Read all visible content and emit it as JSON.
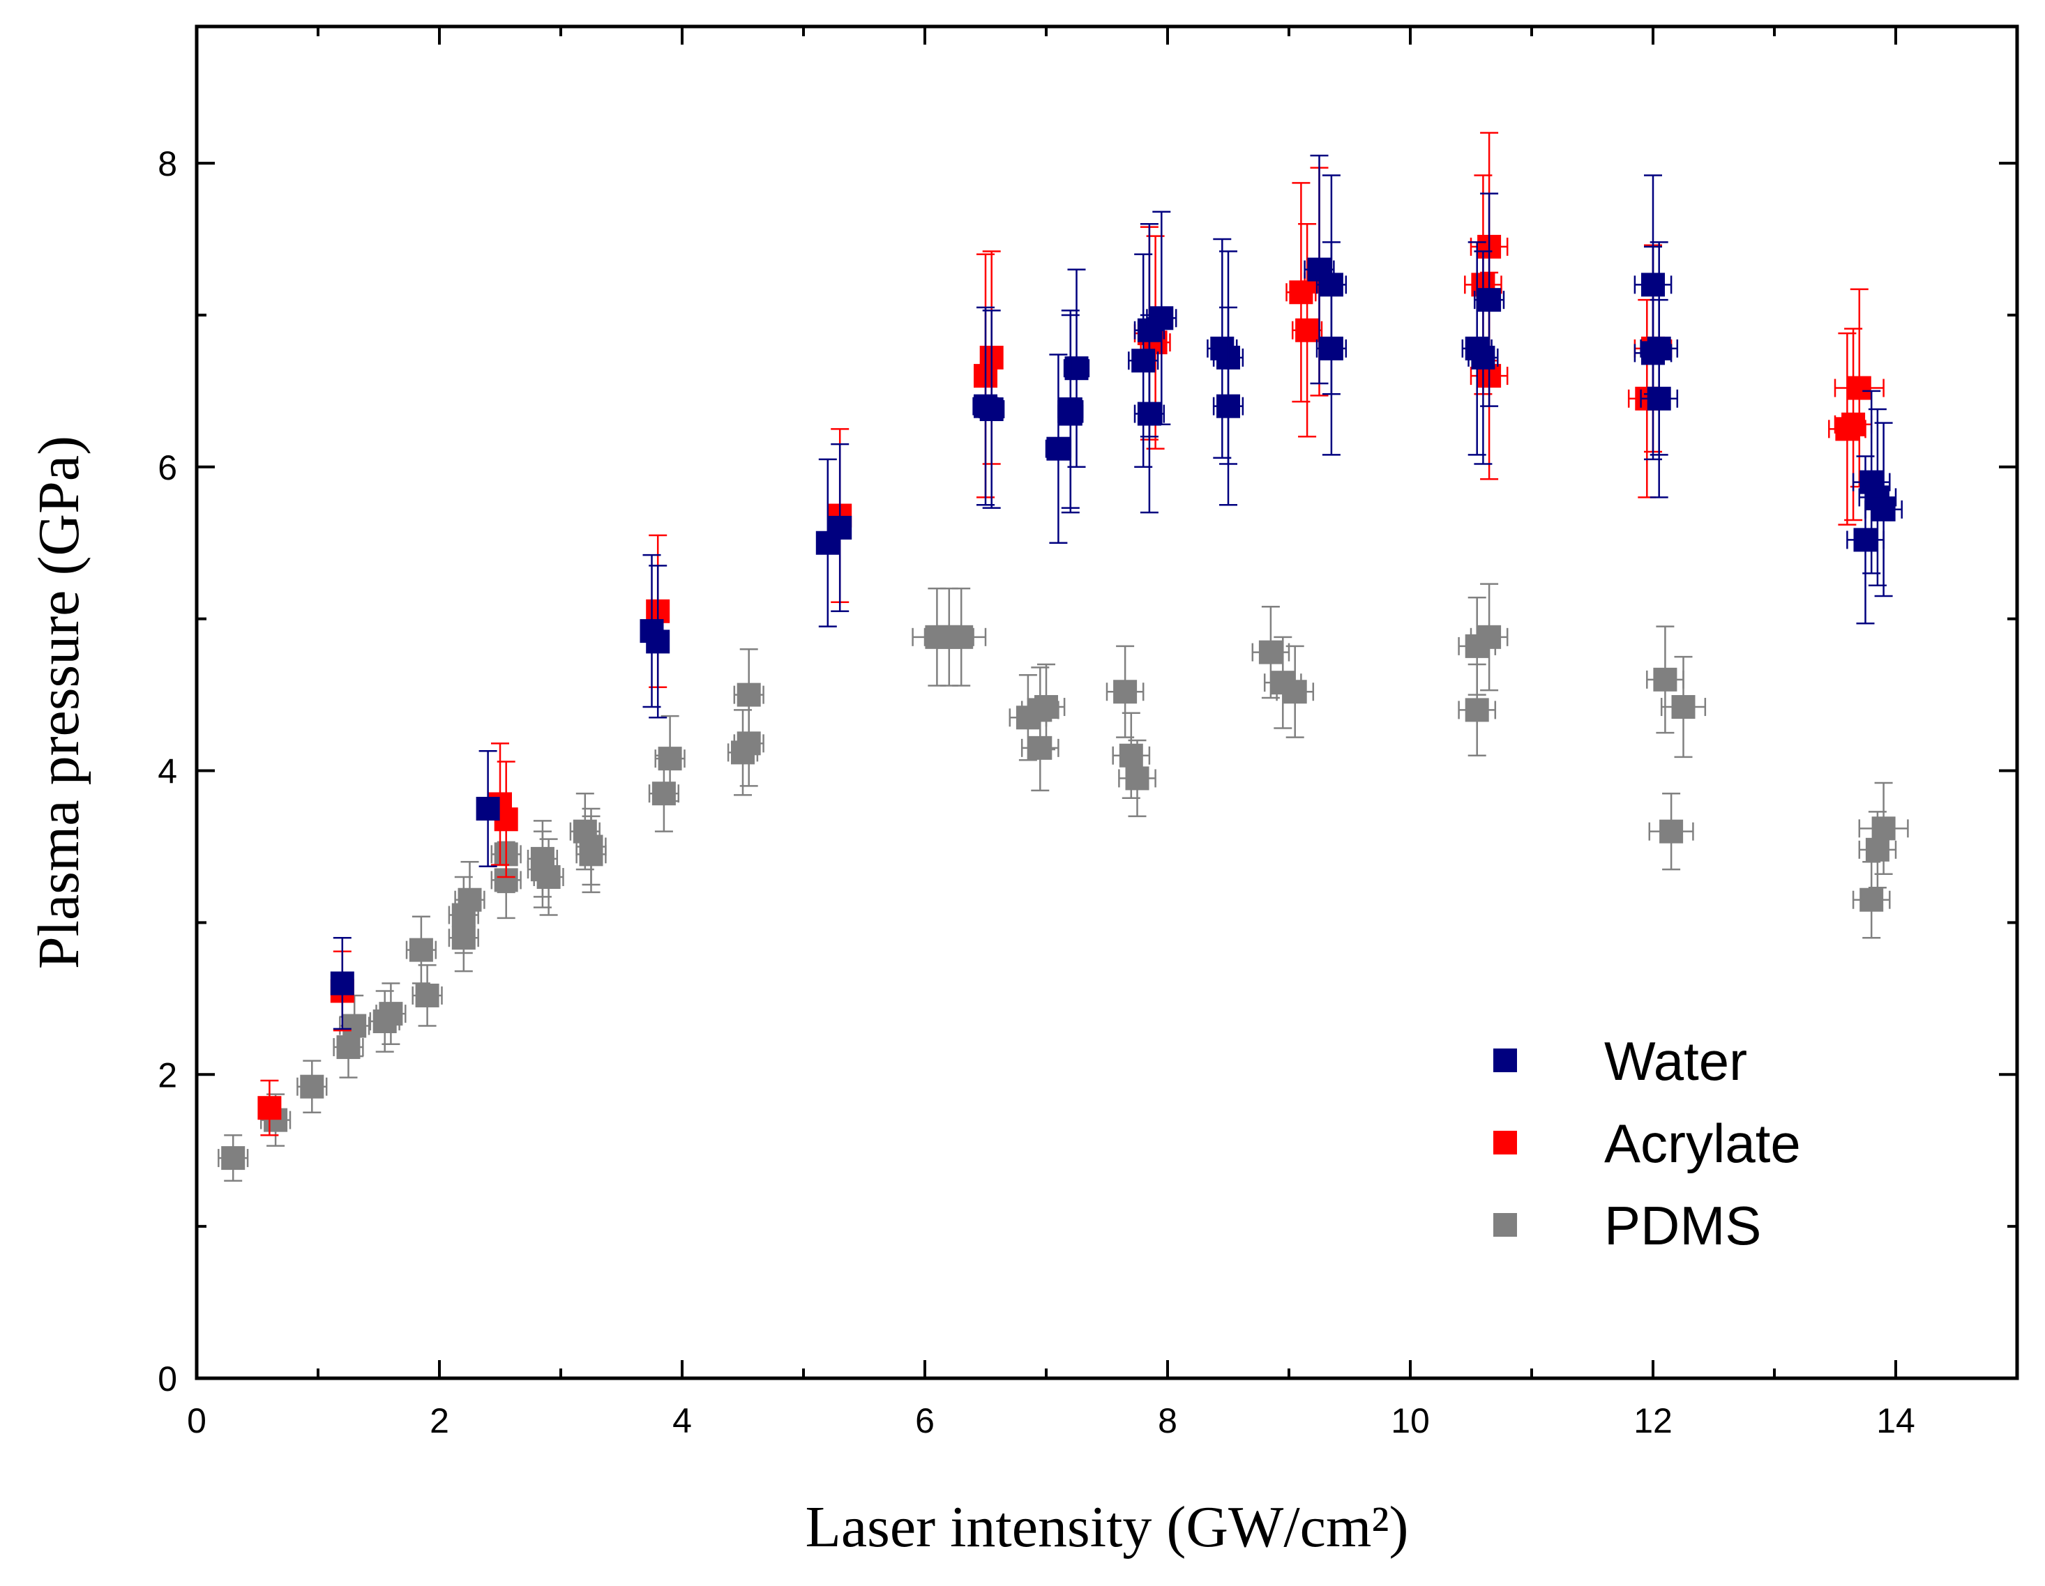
{
  "chart_data": {
    "type": "scatter",
    "title": "",
    "xlabel": "Laser intensity (GW/cm²)",
    "ylabel": "Plasma pressure (GPa)",
    "xlim": [
      0,
      15
    ],
    "ylim": [
      0,
      8.9
    ],
    "xticks": [
      "0",
      "2",
      "4",
      "6",
      "8",
      "10",
      "12",
      "14"
    ],
    "yticks": [
      "0",
      "2",
      "4",
      "6",
      "8"
    ],
    "grid": false,
    "legend_position": "bottom-right",
    "error_bars": true,
    "series": [
      {
        "name": "Water",
        "color": "#00007f",
        "points": [
          [
            1.2,
            2.6,
            0.0,
            0.3
          ],
          [
            2.4,
            3.75,
            0.0,
            0.38
          ],
          [
            3.75,
            4.92,
            0.0,
            0.5
          ],
          [
            3.8,
            4.85,
            0.0,
            0.5
          ],
          [
            5.2,
            5.5,
            0.0,
            0.55
          ],
          [
            5.3,
            5.6,
            0.0,
            0.55
          ],
          [
            6.5,
            6.4,
            0.1,
            0.65
          ],
          [
            6.55,
            6.38,
            0.1,
            0.65
          ],
          [
            7.1,
            6.12,
            0.1,
            0.62
          ],
          [
            7.2,
            6.38,
            0.1,
            0.65
          ],
          [
            7.25,
            6.65,
            0.1,
            0.65
          ],
          [
            7.2,
            6.35,
            0.1,
            0.65
          ],
          [
            7.8,
            6.7,
            0.12,
            0.7
          ],
          [
            7.85,
            6.9,
            0.12,
            0.7
          ],
          [
            7.95,
            6.98,
            0.12,
            0.7
          ],
          [
            7.85,
            6.35,
            0.12,
            0.65
          ],
          [
            8.45,
            6.78,
            0.12,
            0.72
          ],
          [
            8.5,
            6.72,
            0.12,
            0.7
          ],
          [
            8.5,
            6.4,
            0.12,
            0.65
          ],
          [
            9.25,
            7.3,
            0.12,
            0.75
          ],
          [
            9.35,
            7.2,
            0.12,
            0.72
          ],
          [
            9.35,
            6.78,
            0.12,
            0.7
          ],
          [
            10.55,
            6.78,
            0.12,
            0.7
          ],
          [
            10.6,
            6.72,
            0.12,
            0.7
          ],
          [
            10.65,
            7.1,
            0.12,
            0.7
          ],
          [
            12.0,
            7.2,
            0.15,
            0.72
          ],
          [
            12.0,
            6.75,
            0.15,
            0.7
          ],
          [
            12.05,
            6.78,
            0.15,
            0.7
          ],
          [
            12.05,
            6.45,
            0.15,
            0.65
          ],
          [
            13.75,
            5.52,
            0.15,
            0.55
          ],
          [
            13.8,
            5.9,
            0.15,
            0.6
          ],
          [
            13.85,
            5.8,
            0.15,
            0.58
          ],
          [
            13.9,
            5.72,
            0.15,
            0.57
          ]
        ]
      },
      {
        "name": "Acrylate",
        "color": "#ff0000",
        "points": [
          [
            0.6,
            1.78,
            0.0,
            0.18
          ],
          [
            1.2,
            2.55,
            0.0,
            0.26
          ],
          [
            2.5,
            3.78,
            0.0,
            0.4
          ],
          [
            2.55,
            3.68,
            0.0,
            0.38
          ],
          [
            3.8,
            5.05,
            0.0,
            0.5
          ],
          [
            5.3,
            5.68,
            0.0,
            0.57
          ],
          [
            6.5,
            6.6,
            0.0,
            0.8
          ],
          [
            6.55,
            6.72,
            0.0,
            0.7
          ],
          [
            7.85,
            6.88,
            0.12,
            0.7
          ],
          [
            7.9,
            6.82,
            0.12,
            0.7
          ],
          [
            9.1,
            7.15,
            0.12,
            0.72
          ],
          [
            9.15,
            6.9,
            0.12,
            0.7
          ],
          [
            9.25,
            7.22,
            0.12,
            0.75
          ],
          [
            10.6,
            7.2,
            0.15,
            0.72
          ],
          [
            10.65,
            7.45,
            0.15,
            0.75
          ],
          [
            10.65,
            6.6,
            0.15,
            0.68
          ],
          [
            11.95,
            6.45,
            0.15,
            0.65
          ],
          [
            12.0,
            6.78,
            0.15,
            0.68
          ],
          [
            13.6,
            6.25,
            0.15,
            0.63
          ],
          [
            13.65,
            6.28,
            0.15,
            0.63
          ],
          [
            13.7,
            6.52,
            0.2,
            0.65
          ]
        ]
      },
      {
        "name": "PDMS",
        "color": "#808080",
        "points": [
          [
            0.3,
            1.45,
            0.12,
            0.15
          ],
          [
            0.65,
            1.7,
            0.12,
            0.17
          ],
          [
            0.95,
            1.92,
            0.12,
            0.17
          ],
          [
            1.25,
            2.18,
            0.12,
            0.2
          ],
          [
            1.3,
            2.32,
            0.12,
            0.2
          ],
          [
            1.55,
            2.35,
            0.12,
            0.2
          ],
          [
            1.6,
            2.4,
            0.12,
            0.2
          ],
          [
            1.85,
            2.82,
            0.12,
            0.22
          ],
          [
            1.9,
            2.52,
            0.12,
            0.2
          ],
          [
            2.2,
            2.9,
            0.12,
            0.22
          ],
          [
            2.2,
            3.05,
            0.12,
            0.25
          ],
          [
            2.25,
            3.15,
            0.12,
            0.25
          ],
          [
            2.55,
            3.28,
            0.12,
            0.25
          ],
          [
            2.55,
            3.45,
            0.12,
            0.25
          ],
          [
            2.85,
            3.42,
            0.12,
            0.25
          ],
          [
            2.85,
            3.35,
            0.12,
            0.25
          ],
          [
            2.9,
            3.3,
            0.12,
            0.25
          ],
          [
            3.2,
            3.6,
            0.12,
            0.25
          ],
          [
            3.25,
            3.5,
            0.12,
            0.25
          ],
          [
            3.25,
            3.45,
            0.12,
            0.25
          ],
          [
            3.85,
            3.85,
            0.12,
            0.25
          ],
          [
            3.9,
            4.08,
            0.12,
            0.28
          ],
          [
            4.5,
            4.12,
            0.12,
            0.28
          ],
          [
            4.55,
            4.18,
            0.12,
            0.28
          ],
          [
            4.55,
            4.5,
            0.12,
            0.3
          ],
          [
            6.1,
            4.88,
            0.2,
            0.32
          ],
          [
            6.2,
            4.88,
            0.2,
            0.32
          ],
          [
            6.3,
            4.88,
            0.2,
            0.32
          ],
          [
            6.85,
            4.35,
            0.15,
            0.28
          ],
          [
            6.95,
            4.4,
            0.15,
            0.28
          ],
          [
            7.0,
            4.42,
            0.15,
            0.28
          ],
          [
            6.95,
            4.15,
            0.15,
            0.28
          ],
          [
            7.65,
            4.52,
            0.15,
            0.3
          ],
          [
            7.7,
            4.1,
            0.15,
            0.28
          ],
          [
            7.75,
            3.95,
            0.15,
            0.25
          ],
          [
            8.85,
            4.78,
            0.15,
            0.3
          ],
          [
            8.95,
            4.58,
            0.15,
            0.3
          ],
          [
            9.05,
            4.52,
            0.15,
            0.3
          ],
          [
            10.55,
            4.82,
            0.15,
            0.32
          ],
          [
            10.65,
            4.88,
            0.15,
            0.35
          ],
          [
            10.55,
            4.4,
            0.15,
            0.3
          ],
          [
            12.1,
            4.6,
            0.15,
            0.35
          ],
          [
            12.25,
            4.42,
            0.18,
            0.33
          ],
          [
            12.15,
            3.6,
            0.18,
            0.25
          ],
          [
            13.8,
            3.15,
            0.15,
            0.25
          ],
          [
            13.85,
            3.48,
            0.15,
            0.25
          ],
          [
            13.9,
            3.62,
            0.2,
            0.3
          ]
        ]
      }
    ]
  }
}
